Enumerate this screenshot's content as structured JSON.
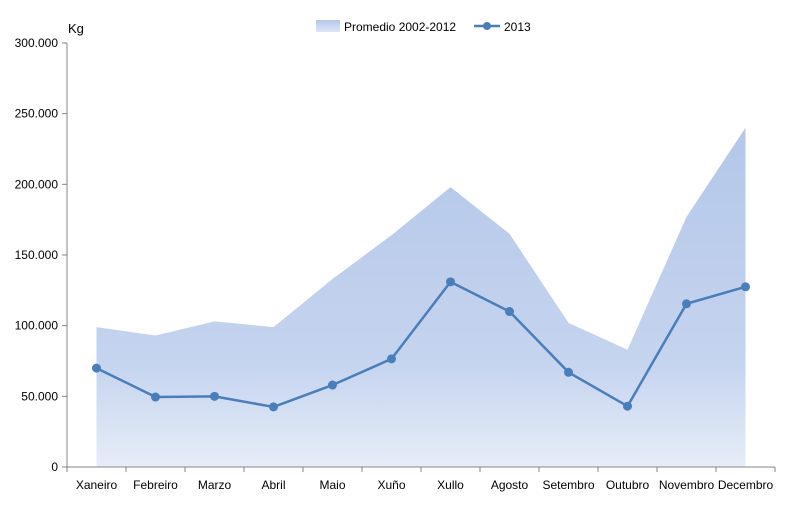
{
  "chart_data": {
    "type": "area",
    "unit_label": "Kg",
    "categories": [
      "Xaneiro",
      "Febreiro",
      "Marzo",
      "Abril",
      "Maio",
      "Xuño",
      "Xullo",
      "Agosto",
      "Setembro",
      "Outubro",
      "Novembro",
      "Decembro"
    ],
    "y_ticks": [
      "0",
      "50.000",
      "100.000",
      "150.000",
      "200.000",
      "250.000",
      "300.000"
    ],
    "ylim": [
      0,
      300000
    ],
    "grid": false,
    "legend_position": "top-center",
    "series": [
      {
        "name": "Promedio 2002-2012",
        "kind": "area",
        "color": "#b9cbeb",
        "values": [
          99000,
          93000,
          103000,
          99000,
          133000,
          164000,
          198000,
          165000,
          102000,
          83000,
          177000,
          240000
        ]
      },
      {
        "name": "2013",
        "kind": "line",
        "color": "#4a7ebb",
        "values": [
          70000,
          49500,
          50000,
          42500,
          58000,
          76500,
          131000,
          110000,
          67000,
          43000,
          115500,
          127500
        ]
      }
    ]
  }
}
